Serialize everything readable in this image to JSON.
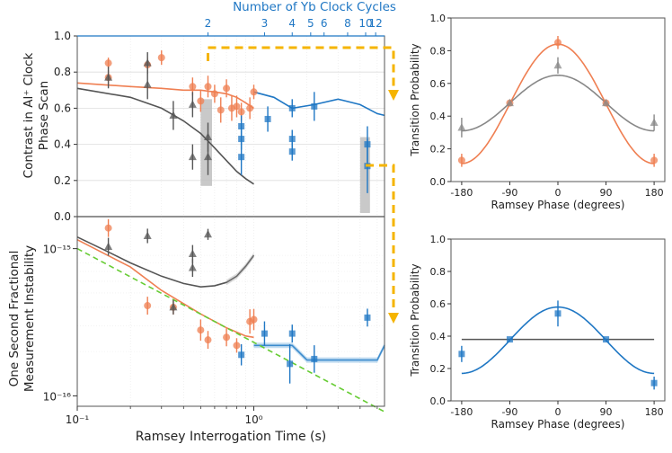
{
  "colors": {
    "orange": "#ef7f52",
    "orange_fill": "#f6a585",
    "gray": "#555555",
    "gray_mid": "#888888",
    "blue": "#1f77c4",
    "blue_fill": "#69a9dc",
    "green": "#66cc33",
    "yellow": "#f5b400",
    "highlight": "#bbbbbb"
  },
  "chart_data": [
    {
      "id": "contrast",
      "type": "scatter",
      "ylabel_lines": [
        "Contrast in Al⁺ Clock",
        "Phase Scan"
      ],
      "xscale": "log",
      "xlim": [
        0.1,
        5.5
      ],
      "ylim": [
        0,
        1
      ],
      "yticks": [
        0.0,
        0.2,
        0.4,
        0.6,
        0.8,
        1.0
      ],
      "ytick_labels": [
        "0.0",
        "0.2",
        "0.4",
        "0.6",
        "0.8",
        "1.0"
      ],
      "top_axis": {
        "title": "Number of Yb Clock Cycles",
        "ticks": [
          {
            "label": "2",
            "x": 0.55
          },
          {
            "label": "3",
            "x": 1.15
          },
          {
            "label": "4",
            "x": 1.65
          },
          {
            "label": "5",
            "x": 2.1
          },
          {
            "label": "6",
            "x": 2.5
          },
          {
            "label": "8",
            "x": 3.4
          },
          {
            "label": "10",
            "x": 4.3
          },
          {
            "label": "12",
            "x": 4.9
          }
        ]
      },
      "highlights": [
        {
          "x": [
            0.5,
            0.58
          ],
          "y": [
            0.17,
            0.65
          ]
        },
        {
          "x": [
            4.0,
            4.55
          ],
          "y": [
            0.02,
            0.44
          ]
        }
      ],
      "series": [
        {
          "name": "Al+ orange data",
          "color": "orange",
          "marker": "circle",
          "points": [
            [
              0.15,
              0.77,
              0.04
            ],
            [
              0.15,
              0.85,
              0.03
            ],
            [
              0.25,
              0.84,
              0.04
            ],
            [
              0.3,
              0.88,
              0.04
            ],
            [
              0.45,
              0.72,
              0.05
            ],
            [
              0.5,
              0.64,
              0.06
            ],
            [
              0.55,
              0.72,
              0.06
            ],
            [
              0.6,
              0.68,
              0.05
            ],
            [
              0.65,
              0.59,
              0.07
            ],
            [
              0.7,
              0.71,
              0.05
            ],
            [
              0.75,
              0.6,
              0.07
            ],
            [
              0.8,
              0.61,
              0.06
            ],
            [
              0.85,
              0.58,
              0.05
            ],
            [
              0.95,
              0.6,
              0.06
            ],
            [
              1.0,
              0.69,
              0.04
            ]
          ]
        },
        {
          "name": "Al+ gray data",
          "color": "gray",
          "marker": "triangle",
          "points": [
            [
              0.15,
              0.77,
              0.06
            ],
            [
              0.25,
              0.85,
              0.06
            ],
            [
              0.25,
              0.73,
              0.08
            ],
            [
              0.35,
              0.56,
              0.08
            ],
            [
              0.45,
              0.33,
              0.07
            ],
            [
              0.45,
              0.62,
              0.07
            ],
            [
              0.55,
              0.33,
              0.1
            ],
            [
              0.55,
              0.44,
              0.08
            ]
          ]
        },
        {
          "name": "Yb blue data",
          "color": "blue",
          "marker": "square",
          "points": [
            [
              0.85,
              0.5,
              0.06
            ],
            [
              0.85,
              0.43,
              0.06
            ],
            [
              0.85,
              0.33,
              0.1
            ],
            [
              1.2,
              0.54,
              0.07
            ],
            [
              1.65,
              0.6,
              0.05
            ],
            [
              1.65,
              0.43,
              0.05
            ],
            [
              1.65,
              0.36,
              0.05
            ],
            [
              2.2,
              0.61,
              0.08
            ],
            [
              4.4,
              0.4,
              0.1
            ],
            [
              4.4,
              0.28,
              0.15
            ]
          ]
        }
      ],
      "lines": [
        {
          "name": "orange fit",
          "color": "orange",
          "x": [
            0.1,
            0.2,
            0.3,
            0.4,
            0.5,
            0.6,
            0.7,
            0.8,
            0.9,
            1.0
          ],
          "y": [
            0.74,
            0.72,
            0.71,
            0.7,
            0.7,
            0.69,
            0.68,
            0.66,
            0.63,
            0.6
          ]
        },
        {
          "name": "gray fit",
          "color": "gray",
          "x": [
            0.1,
            0.2,
            0.3,
            0.4,
            0.5,
            0.6,
            0.7,
            0.8,
            0.9,
            1.0
          ],
          "y": [
            0.71,
            0.66,
            0.6,
            0.53,
            0.46,
            0.38,
            0.31,
            0.25,
            0.21,
            0.18
          ]
        },
        {
          "name": "blue fit",
          "color": "blue",
          "x": [
            1.0,
            1.3,
            1.65,
            2.2,
            3.0,
            4.0,
            5.0,
            5.5
          ],
          "y": [
            0.69,
            0.66,
            0.6,
            0.62,
            0.65,
            0.62,
            0.57,
            0.56
          ]
        }
      ]
    },
    {
      "id": "instability",
      "type": "scatter",
      "ylabel_lines": [
        "One Second Fractional",
        "Measurement Instability"
      ],
      "xlabel": "Ramsey Interrogation Time (s)",
      "xscale": "log",
      "yscale": "log",
      "xlim": [
        0.1,
        5.5
      ],
      "ylim": [
        8.5e-17,
        1.65e-15
      ],
      "xticks": [
        {
          "label": "10⁻¹",
          "x": 0.1
        },
        {
          "label": "10⁰",
          "x": 1.0
        }
      ],
      "yticks": [
        {
          "label": "10⁻¹⁵",
          "y": 1e-15
        },
        {
          "label": "10⁻¹⁶",
          "y": 1e-16
        }
      ],
      "series": [
        {
          "name": "orange data",
          "color": "orange",
          "marker": "circle",
          "points": [
            [
              0.15,
              1.38e-15,
              0.05
            ],
            [
              0.25,
              4.1e-16,
              0.05
            ],
            [
              0.35,
              4e-16,
              0.04
            ],
            [
              0.5,
              2.8e-16,
              0.06
            ],
            [
              0.55,
              2.4e-16,
              0.05
            ],
            [
              0.7,
              2.5e-16,
              0.05
            ],
            [
              0.8,
              2.2e-16,
              0.04
            ],
            [
              0.95,
              3.2e-16,
              0.07
            ],
            [
              1.0,
              3.3e-16,
              0.06
            ]
          ]
        },
        {
          "name": "gray data",
          "color": "gray",
          "marker": "triangle",
          "points": [
            [
              0.15,
              1.03e-15,
              0.05
            ],
            [
              0.25,
              1.22e-15,
              0.04
            ],
            [
              0.35,
              4e-16,
              0.04
            ],
            [
              0.45,
              7.4e-16,
              0.05
            ],
            [
              0.55,
              1.25e-15,
              0.03
            ],
            [
              0.45,
              9.2e-16,
              0.05
            ]
          ]
        },
        {
          "name": "blue data",
          "color": "blue",
          "marker": "square",
          "points": [
            [
              0.85,
              1.9e-16,
              0.06
            ],
            [
              1.15,
              2.65e-16,
              0.07
            ],
            [
              1.6,
              1.65e-16,
              0.12
            ],
            [
              1.65,
              2.65e-16,
              0.05
            ],
            [
              2.2,
              1.78e-16,
              0.08
            ],
            [
              4.4,
              3.4e-16,
              0.05
            ]
          ]
        }
      ],
      "lines": [
        {
          "name": "orange fit",
          "color": "orange",
          "x": [
            0.1,
            0.2,
            0.3,
            0.5,
            0.7,
            0.9,
            1.0
          ],
          "y": [
            1.15e-15,
            7.5e-16,
            5.2e-16,
            3.6e-16,
            2.9e-16,
            2.55e-16,
            2.5e-16
          ]
        },
        {
          "name": "gray fit",
          "color": "gray",
          "x": [
            0.1,
            0.15,
            0.2,
            0.3,
            0.4,
            0.5,
            0.6,
            0.7,
            0.8,
            0.9,
            1.0
          ],
          "y": [
            1.2e-15,
            9.5e-16,
            8e-16,
            6.5e-16,
            5.8e-16,
            5.5e-16,
            5.6e-16,
            5.9e-16,
            6.5e-16,
            7.6e-16,
            9e-16
          ]
        },
        {
          "name": "blue fit",
          "color": "blue",
          "x": [
            1.0,
            1.3,
            1.65,
            2.0,
            2.4,
            3.0,
            4.0,
            5.0,
            5.5
          ],
          "y": [
            2.2e-16,
            2.2e-16,
            2.2e-16,
            1.75e-16,
            1.75e-16,
            1.75e-16,
            1.75e-16,
            1.75e-16,
            2.2e-16
          ]
        },
        {
          "name": "green reference",
          "color": "green",
          "dashed": true,
          "x": [
            0.1,
            5.5
          ],
          "y": [
            1e-15,
            7.8e-17
          ]
        }
      ]
    },
    {
      "id": "phase_scan_al",
      "type": "scatter",
      "ylabel": "Transition Probability",
      "xlabel": "Ramsey Phase (degrees)",
      "xlim": [
        -200,
        200
      ],
      "ylim": [
        0,
        1
      ],
      "xticks": [
        -180,
        -90,
        0,
        90,
        180
      ],
      "xtick_labels": [
        "-180",
        "-90",
        "0",
        "90",
        "180"
      ],
      "yticks": [
        0.0,
        0.2,
        0.4,
        0.6,
        0.8,
        1.0
      ],
      "ytick_labels": [
        "0.0",
        "0.2",
        "0.4",
        "0.6",
        "0.8",
        "1.0"
      ],
      "series": [
        {
          "name": "orange",
          "color": "orange",
          "marker": "circle",
          "points": [
            [
              -180,
              0.13,
              0.04
            ],
            [
              -90,
              0.48,
              0.0
            ],
            [
              0,
              0.85,
              0.04
            ],
            [
              90,
              0.48,
              0.0
            ],
            [
              180,
              0.13,
              0.04
            ]
          ]
        },
        {
          "name": "gray",
          "color": "gray_mid",
          "marker": "triangle",
          "points": [
            [
              -180,
              0.33,
              0.06
            ],
            [
              -90,
              0.48,
              0.0
            ],
            [
              0,
              0.71,
              0.05
            ],
            [
              90,
              0.48,
              0.0
            ],
            [
              180,
              0.36,
              0.05
            ]
          ]
        }
      ],
      "fits": [
        {
          "color": "orange",
          "center": 0.475,
          "amplitude": 0.365
        },
        {
          "color": "gray_mid",
          "center": 0.48,
          "amplitude": 0.17
        }
      ]
    },
    {
      "id": "phase_scan_yb",
      "type": "scatter",
      "ylabel": "Transition Probability",
      "xlabel": "Ramsey Phase (degrees)",
      "xlim": [
        -200,
        200
      ],
      "ylim": [
        0,
        1
      ],
      "xticks": [
        -180,
        -90,
        0,
        90,
        180
      ],
      "xtick_labels": [
        "-180",
        "-90",
        "0",
        "90",
        "180"
      ],
      "yticks": [
        0.0,
        0.2,
        0.4,
        0.6,
        0.8,
        1.0
      ],
      "ytick_labels": [
        "0.0",
        "0.2",
        "0.4",
        "0.6",
        "0.8",
        "1.0"
      ],
      "series": [
        {
          "name": "blue",
          "color": "blue",
          "marker": "square",
          "points": [
            [
              -180,
              0.29,
              0.05
            ],
            [
              -90,
              0.38,
              0.0
            ],
            [
              0,
              0.54,
              0.08
            ],
            [
              90,
              0.38,
              0.0
            ],
            [
              180,
              0.11,
              0.04
            ]
          ]
        }
      ],
      "fits": [
        {
          "color": "blue",
          "center": 0.375,
          "amplitude": 0.205
        }
      ],
      "hline": {
        "y": 0.38,
        "color": "gray"
      }
    }
  ]
}
